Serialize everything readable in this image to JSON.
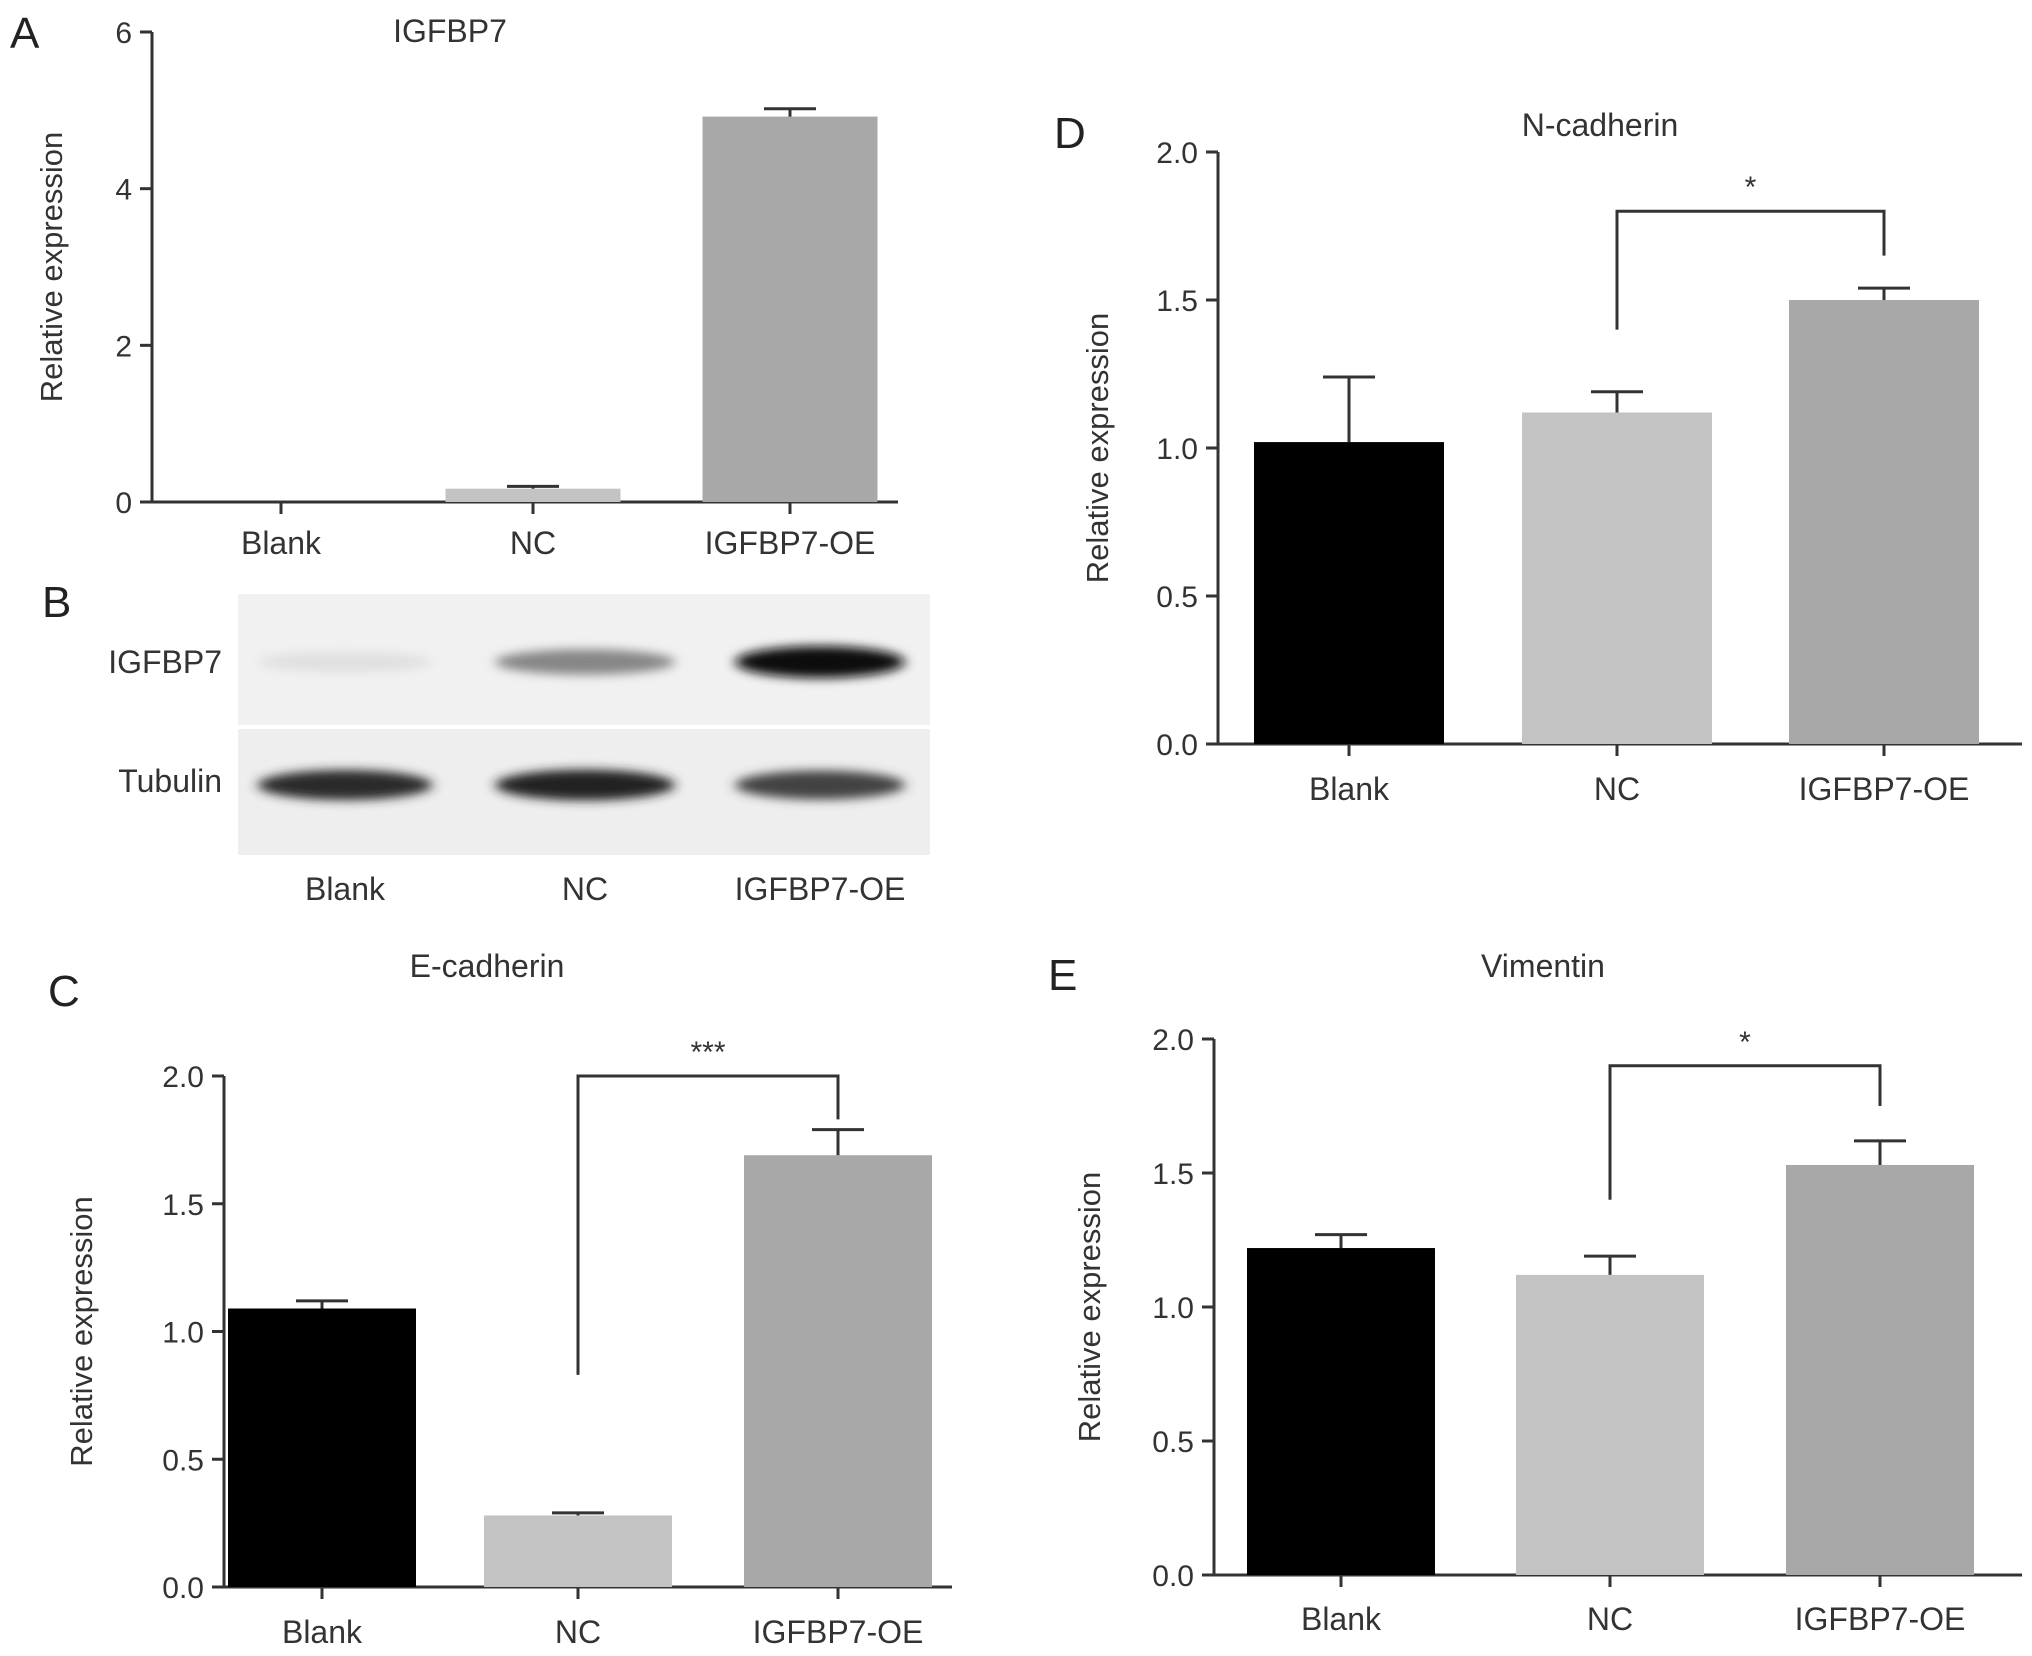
{
  "panels": [
    {
      "letter": "A",
      "chart_data": {
        "type": "bar",
        "title": "IGFBP7",
        "xlabel": "",
        "ylabel": "Relative expression",
        "categories": [
          "Blank",
          "NC",
          "IGFBP7-OE"
        ],
        "values": [
          0.0,
          0.17,
          4.92
        ],
        "errors": [
          0.0,
          0.03,
          0.1
        ],
        "bar_colors": [
          "#000000",
          "#c3c3c3",
          "#a8a8a8"
        ],
        "ylim": [
          0,
          6
        ],
        "yticks": [
          "0",
          "2",
          "4",
          "6"
        ],
        "grid": false,
        "significance": null
      }
    },
    {
      "letter": "B",
      "blot": {
        "rows": [
          "IGFBP7",
          "Tubulin"
        ],
        "lanes": [
          "Blank",
          "NC",
          "IGFBP7-OE"
        ],
        "intensities": [
          [
            0.05,
            0.45,
            1.0
          ],
          [
            0.85,
            0.9,
            0.75
          ]
        ]
      }
    },
    {
      "letter": "C",
      "chart_data": {
        "type": "bar",
        "title": "E-cadherin",
        "xlabel": "",
        "ylabel": "Relative expression",
        "categories": [
          "Blank",
          "NC",
          "IGFBP7-OE"
        ],
        "values": [
          1.09,
          0.28,
          1.69
        ],
        "errors": [
          0.03,
          0.01,
          0.1
        ],
        "bar_colors": [
          "#000000",
          "#c3c3c3",
          "#a8a8a8"
        ],
        "ylim": [
          0,
          2
        ],
        "yticks": [
          "0.0",
          "0.5",
          "1.0",
          "1.5",
          "2.0"
        ],
        "grid": false,
        "significance": {
          "from": 1,
          "to": 2,
          "label": "***",
          "y": 2.0,
          "drop_from": 0.83,
          "drop_to": 1.83
        }
      }
    },
    {
      "letter": "D",
      "chart_data": {
        "type": "bar",
        "title": "N-cadherin",
        "xlabel": "",
        "ylabel": "Relative expression",
        "categories": [
          "Blank",
          "NC",
          "IGFBP7-OE"
        ],
        "values": [
          1.02,
          1.12,
          1.5
        ],
        "errors": [
          0.22,
          0.07,
          0.04
        ],
        "bar_colors": [
          "#000000",
          "#c3c3c3",
          "#a8a8a8"
        ],
        "ylim": [
          0,
          2
        ],
        "yticks": [
          "0.0",
          "0.5",
          "1.0",
          "1.5",
          "2.0"
        ],
        "grid": false,
        "significance": {
          "from": 1,
          "to": 2,
          "label": "*",
          "y": 1.8,
          "drop_from": 1.4,
          "drop_to": 1.65
        }
      }
    },
    {
      "letter": "E",
      "chart_data": {
        "type": "bar",
        "title": "Vimentin",
        "xlabel": "",
        "ylabel": "Relative expression",
        "categories": [
          "Blank",
          "NC",
          "IGFBP7-OE"
        ],
        "values": [
          1.22,
          1.12,
          1.53
        ],
        "errors": [
          0.05,
          0.07,
          0.09
        ],
        "bar_colors": [
          "#000000",
          "#c3c3c3",
          "#a8a8a8"
        ],
        "ylim": [
          0,
          2
        ],
        "yticks": [
          "0.0",
          "0.5",
          "1.0",
          "1.5",
          "2.0"
        ],
        "grid": false,
        "significance": {
          "from": 1,
          "to": 2,
          "label": "*",
          "y": 1.9,
          "drop_from": 1.4,
          "drop_to": 1.75
        }
      }
    }
  ]
}
